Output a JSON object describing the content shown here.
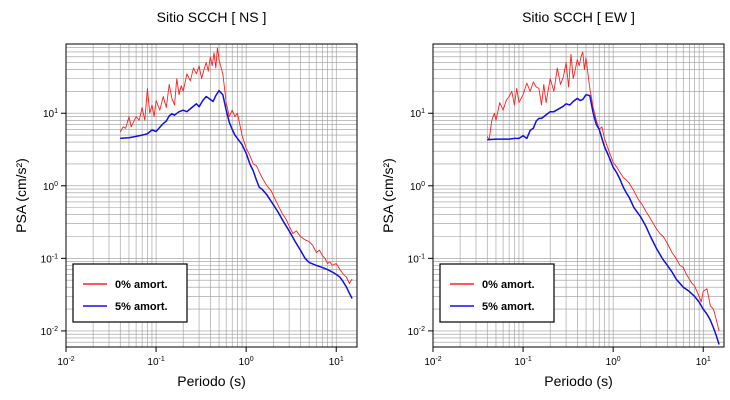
{
  "chart_data": [
    {
      "type": "line",
      "title": "Sitio SCCH [ NS ]",
      "xlabel": "Periodo (s)",
      "ylabel": "PSA (cm/s²)",
      "xscale": "log",
      "yscale": "log",
      "xlim": [
        0.01,
        17
      ],
      "ylim": [
        0.006,
        90
      ],
      "grid": true,
      "legend_position": "bottom-left",
      "xticks": [
        {
          "value": 0.01,
          "base": "10",
          "exp": "-2"
        },
        {
          "value": 0.1,
          "base": "10",
          "exp": "-1"
        },
        {
          "value": 1,
          "base": "10",
          "exp": "0"
        },
        {
          "value": 10,
          "base": "10",
          "exp": "1"
        }
      ],
      "yticks": [
        {
          "value": 0.01,
          "base": "10",
          "exp": "-2"
        },
        {
          "value": 0.1,
          "base": "10",
          "exp": "-1"
        },
        {
          "value": 1,
          "base": "10",
          "exp": "0"
        },
        {
          "value": 10,
          "base": "10",
          "exp": "1"
        }
      ],
      "series": [
        {
          "name": "0% amort.",
          "color": "#ff2020",
          "x": [
            0.04,
            0.043,
            0.046,
            0.05,
            0.053,
            0.056,
            0.06,
            0.065,
            0.07,
            0.075,
            0.08,
            0.085,
            0.09,
            0.095,
            0.1,
            0.11,
            0.12,
            0.13,
            0.14,
            0.15,
            0.16,
            0.17,
            0.18,
            0.19,
            0.2,
            0.22,
            0.24,
            0.26,
            0.28,
            0.3,
            0.32,
            0.34,
            0.36,
            0.38,
            0.4,
            0.42,
            0.44,
            0.46,
            0.48,
            0.5,
            0.52,
            0.55,
            0.58,
            0.6,
            0.65,
            0.7,
            0.75,
            0.8,
            0.85,
            0.9,
            1.0,
            1.1,
            1.2,
            1.3,
            1.4,
            1.5,
            1.7,
            1.9,
            2.1,
            2.3,
            2.5,
            2.8,
            3.0,
            3.3,
            3.6,
            4.0,
            4.5,
            5.0,
            5.5,
            6.0,
            6.5,
            7.0,
            7.5,
            8.0,
            8.5,
            9.0,
            10.0,
            11.0,
            12.0,
            13.0,
            14.0,
            15.0
          ],
          "values": [
            5.5,
            6.5,
            6.2,
            9.0,
            6.5,
            7.5,
            9.0,
            8.0,
            12.0,
            8.0,
            22.0,
            10.0,
            13.0,
            9.0,
            15.0,
            11.0,
            17.0,
            12.0,
            25.0,
            16.0,
            13.0,
            30.0,
            18.0,
            24.0,
            20.0,
            35.0,
            28.0,
            42.0,
            35.0,
            45.0,
            30.0,
            40.0,
            50.0,
            38.0,
            60.0,
            45.0,
            68.0,
            42.0,
            80.0,
            55.0,
            45.0,
            35.0,
            20.0,
            14.0,
            9.0,
            11.0,
            9.0,
            10.0,
            7.0,
            5.0,
            3.3,
            2.6,
            2.0,
            1.9,
            1.55,
            1.3,
            1.0,
            0.85,
            0.65,
            0.52,
            0.42,
            0.34,
            0.28,
            0.22,
            0.24,
            0.2,
            0.18,
            0.17,
            0.15,
            0.12,
            0.13,
            0.11,
            0.1,
            0.085,
            0.09,
            0.08,
            0.085,
            0.07,
            0.06,
            0.055,
            0.045,
            0.052
          ]
        },
        {
          "name": "5% amort.",
          "color": "#1010e0",
          "x": [
            0.04,
            0.05,
            0.06,
            0.07,
            0.08,
            0.09,
            0.1,
            0.11,
            0.12,
            0.13,
            0.14,
            0.15,
            0.16,
            0.18,
            0.2,
            0.22,
            0.25,
            0.28,
            0.3,
            0.33,
            0.36,
            0.4,
            0.43,
            0.46,
            0.5,
            0.55,
            0.6,
            0.65,
            0.7,
            0.75,
            0.8,
            0.9,
            1.0,
            1.1,
            1.2,
            1.3,
            1.4,
            1.5,
            1.7,
            2.0,
            2.3,
            2.6,
            3.0,
            3.5,
            4.0,
            4.5,
            5.0,
            6.0,
            7.0,
            8.0,
            9.0,
            10.0,
            11.0,
            12.0,
            13.0,
            14.0,
            15.0
          ],
          "values": [
            4.5,
            4.6,
            4.8,
            5.0,
            5.2,
            5.9,
            5.6,
            6.4,
            7.2,
            7.8,
            9.2,
            9.8,
            9.4,
            10.5,
            11.0,
            10.5,
            12.0,
            13.5,
            12.3,
            15.0,
            17.0,
            15.5,
            14.5,
            17.5,
            20.5,
            18.0,
            11.0,
            7.5,
            6.0,
            5.0,
            4.5,
            3.7,
            2.8,
            2.0,
            1.6,
            1.2,
            0.95,
            0.9,
            0.75,
            0.55,
            0.42,
            0.32,
            0.24,
            0.17,
            0.13,
            0.1,
            0.088,
            0.08,
            0.075,
            0.07,
            0.065,
            0.06,
            0.055,
            0.047,
            0.04,
            0.033,
            0.028
          ]
        }
      ]
    },
    {
      "type": "line",
      "title": "Sitio SCCH [ EW ]",
      "xlabel": "Periodo (s)",
      "ylabel": "PSA (cm/s²)",
      "xscale": "log",
      "yscale": "log",
      "xlim": [
        0.01,
        17
      ],
      "ylim": [
        0.006,
        90
      ],
      "grid": true,
      "legend_position": "bottom-left",
      "xticks": [
        {
          "value": 0.01,
          "base": "10",
          "exp": "-2"
        },
        {
          "value": 0.1,
          "base": "10",
          "exp": "-1"
        },
        {
          "value": 1,
          "base": "10",
          "exp": "0"
        },
        {
          "value": 10,
          "base": "10",
          "exp": "1"
        }
      ],
      "yticks": [
        {
          "value": 0.01,
          "base": "10",
          "exp": "-2"
        },
        {
          "value": 0.1,
          "base": "10",
          "exp": "-1"
        },
        {
          "value": 1,
          "base": "10",
          "exp": "0"
        },
        {
          "value": 10,
          "base": "10",
          "exp": "1"
        }
      ],
      "series": [
        {
          "name": "0% amort.",
          "color": "#ff2020",
          "x": [
            0.04,
            0.042,
            0.045,
            0.048,
            0.05,
            0.055,
            0.06,
            0.065,
            0.07,
            0.075,
            0.08,
            0.085,
            0.09,
            0.1,
            0.11,
            0.12,
            0.13,
            0.14,
            0.15,
            0.16,
            0.17,
            0.18,
            0.2,
            0.22,
            0.24,
            0.26,
            0.28,
            0.3,
            0.32,
            0.34,
            0.36,
            0.38,
            0.4,
            0.42,
            0.44,
            0.46,
            0.48,
            0.5,
            0.55,
            0.6,
            0.65,
            0.7,
            0.75,
            0.8,
            0.9,
            1.0,
            1.1,
            1.2,
            1.3,
            1.4,
            1.5,
            1.7,
            1.9,
            2.1,
            2.3,
            2.5,
            2.8,
            3.0,
            3.3,
            3.6,
            4.0,
            4.5,
            5.0,
            5.5,
            6.0,
            6.5,
            7.0,
            7.5,
            8.0,
            8.5,
            9.0,
            9.5,
            10.0,
            11.0,
            12.0,
            13.0,
            14.0,
            15.0
          ],
          "values": [
            4.8,
            4.3,
            8.0,
            10.0,
            8.0,
            14.0,
            11.0,
            15.0,
            17.0,
            20.0,
            13.0,
            22.0,
            14.0,
            18.0,
            26.0,
            20.0,
            27.0,
            23.0,
            22.0,
            13.0,
            25.0,
            14.0,
            30.0,
            20.0,
            42.0,
            25.0,
            32.0,
            50.0,
            23.0,
            65.0,
            30.0,
            40.0,
            55.0,
            45.0,
            60.0,
            70.0,
            40.0,
            58.0,
            22.0,
            12.0,
            8.0,
            6.0,
            6.5,
            4.5,
            3.0,
            2.1,
            1.8,
            1.5,
            1.3,
            1.2,
            1.1,
            0.85,
            0.65,
            0.55,
            0.45,
            0.38,
            0.3,
            0.26,
            0.22,
            0.2,
            0.16,
            0.12,
            0.1,
            0.08,
            0.075,
            0.06,
            0.052,
            0.045,
            0.042,
            0.035,
            0.03,
            0.025,
            0.035,
            0.038,
            0.022,
            0.02,
            0.014,
            0.01
          ]
        },
        {
          "name": "5% amort.",
          "color": "#1010e0",
          "x": [
            0.04,
            0.05,
            0.06,
            0.07,
            0.08,
            0.09,
            0.1,
            0.11,
            0.12,
            0.13,
            0.14,
            0.15,
            0.16,
            0.18,
            0.2,
            0.22,
            0.25,
            0.28,
            0.3,
            0.33,
            0.36,
            0.4,
            0.43,
            0.46,
            0.5,
            0.55,
            0.6,
            0.65,
            0.7,
            0.75,
            0.8,
            0.9,
            1.0,
            1.1,
            1.2,
            1.3,
            1.4,
            1.5,
            1.7,
            2.0,
            2.3,
            2.6,
            3.0,
            3.5,
            4.0,
            4.5,
            5.0,
            6.0,
            7.0,
            8.0,
            9.0,
            10.0,
            11.0,
            12.0,
            13.0,
            14.0,
            15.0
          ],
          "values": [
            4.3,
            4.4,
            4.4,
            4.4,
            4.5,
            4.5,
            4.9,
            4.5,
            5.8,
            6.2,
            7.8,
            8.5,
            8.5,
            9.5,
            10.5,
            10.5,
            11.5,
            12.5,
            13.5,
            13.0,
            14.5,
            16.0,
            15.0,
            15.5,
            18.0,
            17.5,
            10.0,
            7.0,
            6.0,
            4.5,
            3.5,
            2.5,
            1.8,
            1.5,
            1.2,
            0.95,
            0.8,
            0.7,
            0.5,
            0.38,
            0.28,
            0.2,
            0.14,
            0.1,
            0.08,
            0.065,
            0.052,
            0.04,
            0.035,
            0.03,
            0.025,
            0.02,
            0.017,
            0.014,
            0.011,
            0.0085,
            0.0065
          ]
        }
      ]
    }
  ]
}
